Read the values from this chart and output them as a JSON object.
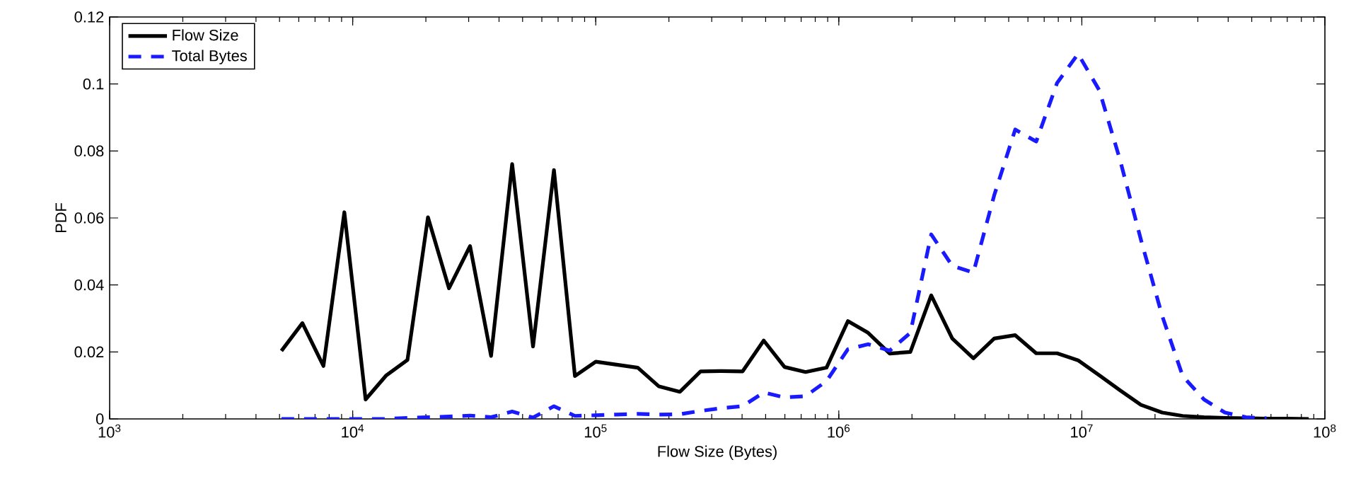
{
  "chart_data": {
    "type": "line",
    "xlabel": "Flow Size (Bytes)",
    "ylabel": "PDF",
    "log": "x",
    "xlim": [
      1000,
      100000000
    ],
    "ylim": [
      0,
      0.12
    ],
    "xticks": [
      {
        "value": 1000,
        "label": "10$^{3}$"
      },
      {
        "value": 10000,
        "label": "10$^{4}$"
      },
      {
        "value": 100000,
        "label": "10$^{5}$"
      },
      {
        "value": 1000000,
        "label": "10$^{6}$"
      },
      {
        "value": 10000000,
        "label": "10$^{7}$"
      },
      {
        "value": 100000000,
        "label": "10$^{8}$"
      }
    ],
    "yticks": [
      0,
      0.02,
      0.04,
      0.06,
      0.08,
      0.1,
      0.12
    ],
    "grid": false,
    "legend": "top left",
    "x": [
      5090,
      6210,
      7580,
      9240,
      11300,
      13700,
      16800,
      20400,
      24900,
      30400,
      37100,
      45300,
      55200,
      67300,
      82100,
      100000,
      122000,
      149000,
      182000,
      222000,
      270000,
      330000,
      402000,
      491000,
      598000,
      730000,
      890000,
      1090000,
      1320000,
      1620000,
      1970000,
      2400000,
      2930000,
      3580000,
      4360000,
      5320000,
      6490000,
      7910000,
      9650000,
      11800000,
      14400000,
      17500000,
      21400000,
      26000000,
      31800000,
      38800000,
      47300000,
      57600000,
      70300000,
      85800000
    ],
    "series": [
      {
        "name": "Flow Size",
        "color": "#000000",
        "line_style": "solid",
        "values": [
          0.0203,
          0.0286,
          0.0158,
          0.0617,
          0.0058,
          0.0129,
          0.0176,
          0.0602,
          0.039,
          0.0516,
          0.0188,
          0.0761,
          0.0216,
          0.0743,
          0.0128,
          0.0171,
          0.0162,
          0.0153,
          0.0097,
          0.0081,
          0.0142,
          0.0143,
          0.0142,
          0.0234,
          0.0155,
          0.014,
          0.0153,
          0.0292,
          0.0257,
          0.0195,
          0.02,
          0.0369,
          0.024,
          0.0181,
          0.024,
          0.025,
          0.0196,
          0.0196,
          0.0175,
          0.013,
          0.0085,
          0.0042,
          0.0019,
          0.0009,
          0.0005,
          0.0003,
          0.0002,
          0.0001,
          0.0001,
          0
        ]
      },
      {
        "name": "Total Bytes",
        "color": "#1a1aff",
        "line_style": "dashed",
        "values": [
          0,
          0,
          0,
          0,
          0,
          0,
          0.0003,
          0.0005,
          0.0007,
          0.001,
          0.0005,
          0.0022,
          0.0004,
          0.0038,
          0.0009,
          0.0011,
          0.0013,
          0.0015,
          0.0013,
          0.0014,
          0.0024,
          0.0032,
          0.0038,
          0.0079,
          0.0064,
          0.0068,
          0.0113,
          0.0208,
          0.0223,
          0.0204,
          0.0257,
          0.0551,
          0.0457,
          0.0437,
          0.0668,
          0.0864,
          0.0828,
          0.1003,
          0.109,
          0.0981,
          0.077,
          0.0535,
          0.0308,
          0.0128,
          0.0058,
          0.0019,
          0.0005,
          0.0002,
          null,
          null
        ]
      }
    ]
  }
}
